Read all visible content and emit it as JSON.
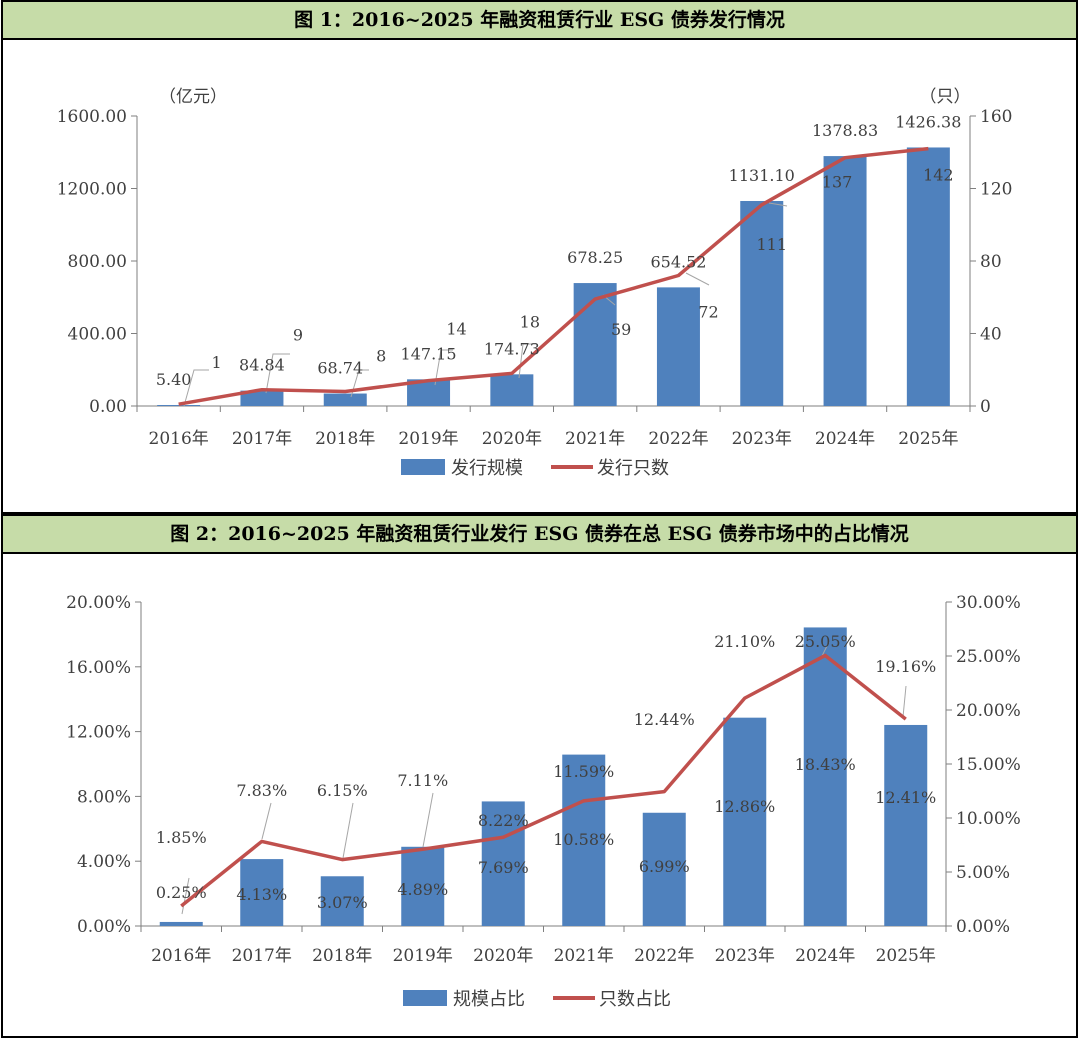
{
  "chart_data": [
    {
      "type": "bar",
      "title": "图 1：2016~2025 年融资租赁行业 ESG 债券发行情况",
      "categories": [
        "2016年",
        "2017年",
        "2018年",
        "2019年",
        "2020年",
        "2021年",
        "2022年",
        "2023年",
        "2024年",
        "2025年"
      ],
      "y_left_unit": "（亿元）",
      "y_right_unit": "（只）",
      "ylim_left": [
        0,
        1600
      ],
      "ylim_right": [
        0,
        160
      ],
      "yticks_left": [
        "0.00",
        "400.00",
        "800.00",
        "1200.00",
        "1600.00"
      ],
      "yticks_right": [
        "0",
        "40",
        "80",
        "120",
        "160"
      ],
      "series": [
        {
          "name": "发行规模",
          "type": "bar",
          "axis": "left",
          "color": "#4f81bd",
          "values": [
            5.4,
            84.84,
            68.74,
            147.15,
            174.73,
            678.25,
            654.52,
            1131.1,
            1378.83,
            1426.38
          ],
          "labels": [
            "5.40",
            "84.84",
            "68.74",
            "147.15",
            "174.73",
            "678.25",
            "654.52",
            "1131.10",
            "1378.83",
            "1426.38"
          ]
        },
        {
          "name": "发行只数",
          "type": "line",
          "axis": "right",
          "color": "#c0504d",
          "values": [
            1,
            9,
            8,
            14,
            18,
            59,
            72,
            111,
            137,
            142
          ],
          "labels": [
            "1",
            "9",
            "8",
            "14",
            "18",
            "59",
            "72",
            "111",
            "137",
            "142"
          ]
        }
      ],
      "legend_position": "bottom",
      "grid": false
    },
    {
      "type": "bar",
      "title": "图 2：2016~2025 年融资租赁行业发行 ESG 债券在总 ESG 债券市场中的占比情况",
      "categories": [
        "2016年",
        "2017年",
        "2018年",
        "2019年",
        "2020年",
        "2021年",
        "2022年",
        "2023年",
        "2024年",
        "2025年"
      ],
      "ylim_left": [
        0,
        20
      ],
      "ylim_right": [
        0,
        30
      ],
      "yticks_left": [
        "0.00%",
        "4.00%",
        "8.00%",
        "12.00%",
        "16.00%",
        "20.00%"
      ],
      "yticks_right": [
        "0.00%",
        "5.00%",
        "10.00%",
        "15.00%",
        "20.00%",
        "25.00%",
        "30.00%"
      ],
      "series": [
        {
          "name": "规模占比",
          "type": "bar",
          "axis": "left",
          "color": "#4f81bd",
          "values": [
            0.25,
            4.13,
            3.07,
            4.89,
            7.69,
            10.58,
            6.99,
            12.86,
            18.43,
            12.41
          ],
          "labels": [
            "0.25%",
            "4.13%",
            "3.07%",
            "4.89%",
            "7.69%",
            "10.58%",
            "6.99%",
            "12.86%",
            "18.43%",
            "12.41%"
          ]
        },
        {
          "name": "只数占比",
          "type": "line",
          "axis": "right",
          "color": "#c0504d",
          "values": [
            1.85,
            7.83,
            6.15,
            7.11,
            8.22,
            11.59,
            12.44,
            21.1,
            25.05,
            19.16
          ],
          "labels": [
            "1.85%",
            "7.83%",
            "6.15%",
            "7.11%",
            "8.22%",
            "11.59%",
            "12.44%",
            "21.10%",
            "25.05%",
            "19.16%"
          ]
        }
      ],
      "legend_position": "bottom",
      "grid": false
    }
  ]
}
